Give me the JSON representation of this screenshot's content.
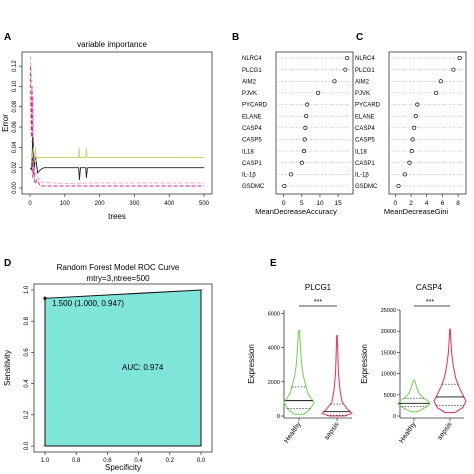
{
  "chart_data": [
    {
      "panel": "A",
      "type": "line",
      "title": "variable importance",
      "xlabel": "trees",
      "ylabel": "Error",
      "xlim": [
        0,
        500
      ],
      "ylim": [
        0,
        0.13
      ],
      "x_ticks": [
        0,
        100,
        200,
        300,
        400,
        500
      ],
      "y_ticks": [
        0.0,
        0.02,
        0.04,
        0.06,
        0.08,
        0.1,
        0.12
      ],
      "y_tick_labels": [
        "0.00",
        "0.02",
        "0.04",
        "0.06",
        "0.08",
        "0.10",
        "0.12"
      ],
      "series": [
        {
          "color": "#e8a0c8",
          "dash": "4,2",
          "points": [
            [
              1,
              0.13
            ],
            [
              3,
              0.12
            ],
            [
              5,
              0.1
            ],
            [
              7,
              0.02
            ],
            [
              9,
              0.09
            ],
            [
              11,
              0.03
            ],
            [
              13,
              0.01
            ],
            [
              16,
              0.04
            ],
            [
              20,
              0.012
            ],
            [
              30,
              0.006
            ],
            [
              60,
              0.005
            ],
            [
              140,
              0.004
            ],
            [
              160,
              0.005
            ],
            [
              300,
              0.005
            ],
            [
              500,
              0.005
            ]
          ]
        },
        {
          "color": "#d02090",
          "dash": "4,2",
          "points": [
            [
              1,
              0.12
            ],
            [
              4,
              0.05
            ],
            [
              6,
              0.1
            ],
            [
              8,
              0.01
            ],
            [
              11,
              0.02
            ],
            [
              14,
              0.004
            ],
            [
              20,
              0.008
            ],
            [
              30,
              0.002
            ],
            [
              500,
              0.002
            ]
          ]
        },
        {
          "color": "#222222",
          "dash": "",
          "points": [
            [
              1,
              0.02
            ],
            [
              5,
              0.018
            ],
            [
              8,
              0.05
            ],
            [
              12,
              0.02
            ],
            [
              16,
              0.03
            ],
            [
              22,
              0.015
            ],
            [
              30,
              0.018
            ],
            [
              40,
              0.02
            ],
            [
              140,
              0.02
            ],
            [
              142,
              0.008
            ],
            [
              145,
              0.02
            ],
            [
              160,
              0.02
            ],
            [
              162,
              0.01
            ],
            [
              165,
              0.02
            ],
            [
              500,
              0.02
            ]
          ]
        },
        {
          "color": "#c8d86c",
          "dash": "",
          "points": [
            [
              1,
              0.03
            ],
            [
              6,
              0.03
            ],
            [
              10,
              0.04
            ],
            [
              15,
              0.025
            ],
            [
              20,
              0.03
            ],
            [
              40,
              0.03
            ],
            [
              140,
              0.03
            ],
            [
              141,
              0.04
            ],
            [
              143,
              0.03
            ],
            [
              160,
              0.03
            ],
            [
              162,
              0.04
            ],
            [
              164,
              0.03
            ],
            [
              500,
              0.03
            ]
          ]
        }
      ]
    },
    {
      "panel": "B",
      "type": "scatter",
      "xlabel": "MeanDecreaseAccuracy",
      "x_ticks": [
        0,
        5,
        10,
        15
      ],
      "xlim": [
        -1,
        18
      ],
      "categories": [
        "NLRC4",
        "PLCG1",
        "AIM2",
        "PJVK",
        "PYCARD",
        "ELANE",
        "CASP4",
        "CASP5",
        "IL18",
        "CASP1",
        "IL-1β",
        "GSDMC"
      ],
      "values": [
        17.5,
        17.0,
        14.0,
        9.5,
        6.5,
        6.2,
        6.0,
        5.8,
        5.6,
        5.0,
        2.0,
        0.2
      ]
    },
    {
      "panel": "C",
      "type": "scatter",
      "xlabel": "MeanDecreaseGini",
      "x_ticks": [
        0,
        2,
        4,
        6,
        8
      ],
      "xlim": [
        -0.3,
        8.5
      ],
      "categories": [
        "NLRC4",
        "PLCG1",
        "AIM2",
        "PJVK",
        "PYCARD",
        "ELANE",
        "CASP4",
        "CASP5",
        "IL18",
        "CASP1",
        "IL-1β",
        "GSDMC"
      ],
      "values": [
        8.2,
        7.4,
        5.8,
        5.2,
        2.8,
        2.6,
        2.4,
        2.2,
        2.1,
        1.8,
        1.2,
        0.4
      ]
    },
    {
      "panel": "D",
      "type": "area",
      "title": "Random Forest Model ROC Curve",
      "subtitle": "mtry=3,ntree=500",
      "xlabel": "Specificity",
      "ylabel": "Sensitivity",
      "xlim": [
        1.0,
        0.0
      ],
      "ylim": [
        0.0,
        1.0
      ],
      "x_ticks": [
        1.0,
        0.8,
        0.6,
        0.4,
        0.2,
        0.0
      ],
      "y_ticks": [
        0.0,
        0.2,
        0.4,
        0.6,
        0.8,
        1.0
      ],
      "x_tick_labels": [
        "1.0",
        "0.8",
        "0.6",
        "0.4",
        "0.2",
        "0.0"
      ],
      "y_tick_labels": [
        "0.0",
        "0.2",
        "0.4",
        "0.6",
        "0.8",
        "1.0"
      ],
      "roc_points": [
        [
          1.0,
          0.0
        ],
        [
          1.0,
          0.947
        ],
        [
          0.0,
          1.0
        ]
      ],
      "threshold_point": [
        1.0,
        0.947
      ],
      "threshold_label": "1.500 (1.000, 0.947)",
      "auc_label": "AUC: 0.974",
      "fill_color": "#7fe5d9"
    },
    {
      "panel": "E",
      "type": "violin",
      "title": "PLCG1",
      "ylabel": "Expression",
      "ylim": [
        0,
        6200
      ],
      "y_ticks": [
        0,
        2000,
        4000,
        6000
      ],
      "y_tick_labels": [
        "0",
        "2000",
        "4000",
        "6000"
      ],
      "categories": [
        "Healthy",
        "sepsis"
      ],
      "significance": "***",
      "series": [
        {
          "name": "Healthy",
          "color": "#7bd45a",
          "min": 100,
          "max": 5000,
          "q1": 450,
          "median": 900,
          "q3": 1700,
          "profile": [
            [
              100,
              0.3
            ],
            [
              400,
              0.75
            ],
            [
              800,
              1.0
            ],
            [
              1300,
              0.6
            ],
            [
              1800,
              0.45
            ],
            [
              2300,
              0.3
            ],
            [
              3000,
              0.18
            ],
            [
              4000,
              0.1
            ],
            [
              5000,
              0.03
            ]
          ]
        },
        {
          "name": "sepsis",
          "color": "#e83d6a",
          "min": 0,
          "max": 4700,
          "q1": 50,
          "median": 250,
          "q3": 700,
          "profile": [
            [
              0,
              0.5
            ],
            [
              150,
              1.0
            ],
            [
              400,
              0.7
            ],
            [
              800,
              0.35
            ],
            [
              1500,
              0.2
            ],
            [
              2500,
              0.1
            ],
            [
              3500,
              0.06
            ],
            [
              4700,
              0.02
            ]
          ]
        }
      ]
    },
    {
      "panel": "E",
      "type": "violin",
      "title": "CASP4",
      "ylabel": "Expression",
      "ylim": [
        0,
        25000
      ],
      "y_ticks": [
        0,
        5000,
        10000,
        15000,
        20000,
        25000
      ],
      "y_tick_labels": [
        "0",
        "5000",
        "10000",
        "15000",
        "20000",
        "25000"
      ],
      "categories": [
        "Healthy",
        "sepsis"
      ],
      "significance": "***",
      "series": [
        {
          "name": "Healthy",
          "color": "#7bd45a",
          "min": 1000,
          "max": 8500,
          "q1": 2200,
          "median": 3000,
          "q3": 4200,
          "profile": [
            [
              1000,
              0.2
            ],
            [
              2000,
              0.7
            ],
            [
              2800,
              1.0
            ],
            [
              3600,
              0.85
            ],
            [
              4500,
              0.5
            ],
            [
              5500,
              0.3
            ],
            [
              7000,
              0.15
            ],
            [
              8500,
              0.03
            ]
          ]
        },
        {
          "name": "sepsis",
          "color": "#e83d6a",
          "min": 800,
          "max": 20500,
          "q1": 2500,
          "median": 4500,
          "q3": 7500,
          "profile": [
            [
              800,
              0.3
            ],
            [
              2000,
              0.8
            ],
            [
              3500,
              1.0
            ],
            [
              5000,
              0.8
            ],
            [
              7000,
              0.55
            ],
            [
              9000,
              0.35
            ],
            [
              12000,
              0.2
            ],
            [
              15000,
              0.1
            ],
            [
              18000,
              0.05
            ],
            [
              20500,
              0.02
            ]
          ]
        }
      ]
    }
  ],
  "panel_labels": [
    "A",
    "B",
    "C",
    "D",
    "E"
  ]
}
